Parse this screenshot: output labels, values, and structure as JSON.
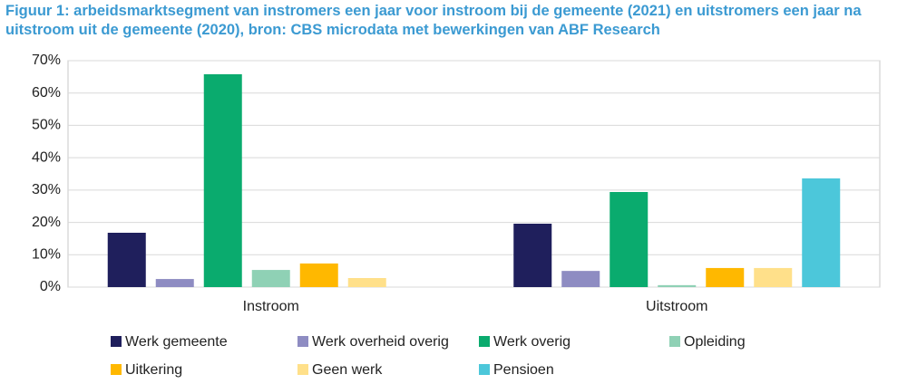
{
  "chart_data": {
    "type": "bar",
    "title": "Figuur 1: arbeidsmarktsegment van instromers een jaar voor instroom bij de gemeente (2021) en uitstromers een jaar na uitstroom uit de gemeente (2020), bron: CBS microdata met bewerkingen van ABF Research",
    "categories": [
      "Instroom",
      "Uitstroom"
    ],
    "series": [
      {
        "name": "Werk gemeente",
        "color": "#1f1f5c",
        "values": [
          16.8,
          19.6
        ]
      },
      {
        "name": "Werk overheid overig",
        "color": "#8e8cc2",
        "values": [
          2.5,
          5.0
        ]
      },
      {
        "name": "Werk overig",
        "color": "#0aab6e",
        "values": [
          65.8,
          29.4
        ]
      },
      {
        "name": "Opleiding",
        "color": "#8fd1b5",
        "values": [
          5.3,
          0.6
        ]
      },
      {
        "name": "Uitkering",
        "color": "#ffb800",
        "values": [
          7.3,
          5.9
        ]
      },
      {
        "name": "Geen werk",
        "color": "#ffe08a",
        "values": [
          2.8,
          5.9
        ]
      },
      {
        "name": "Pensioen",
        "color": "#4cc7da",
        "values": [
          0,
          33.6
        ]
      }
    ],
    "ylim": [
      0,
      70
    ],
    "yticks": [
      {
        "value": 0,
        "label": "0%"
      },
      {
        "value": 10,
        "label": "10%"
      },
      {
        "value": 20,
        "label": "20%"
      },
      {
        "value": 30,
        "label": "30%"
      },
      {
        "value": 40,
        "label": "40%"
      },
      {
        "value": 50,
        "label": "50%"
      },
      {
        "value": 60,
        "label": "60%"
      },
      {
        "value": 70,
        "label": "70%"
      }
    ],
    "grid": true
  }
}
